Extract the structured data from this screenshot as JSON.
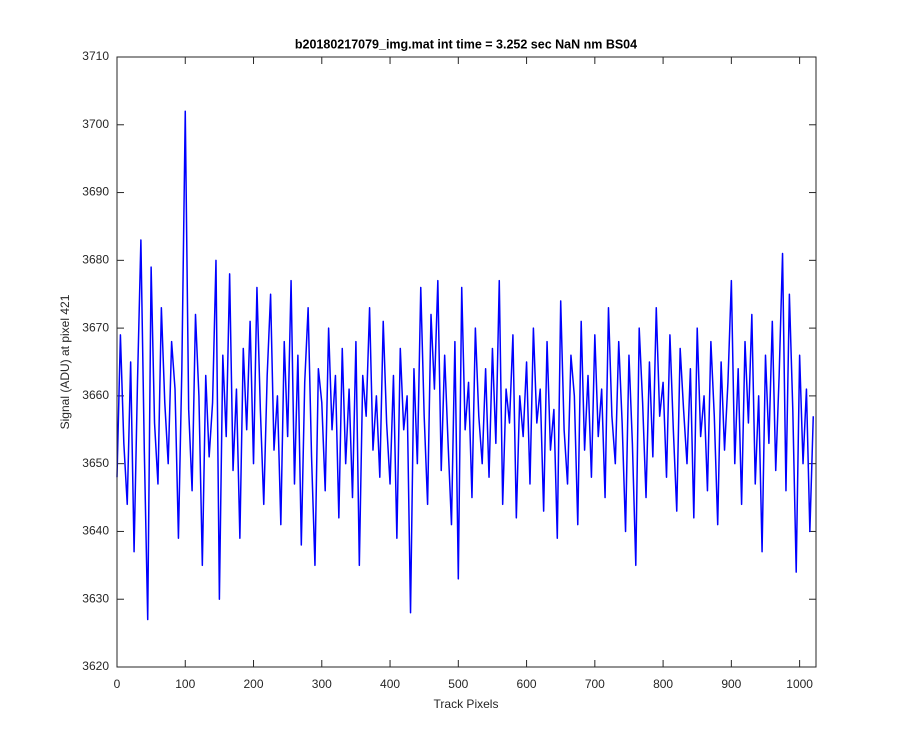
{
  "chart_data": {
    "type": "line",
    "title": "b20180217079_img.mat int time = 3.252 sec  NaN nm BS04",
    "x_label": "Track Pixels",
    "y_label": "Signal (ADU) at pixel 421",
    "xlim": [
      0,
      1024
    ],
    "ylim": [
      3620,
      3710
    ],
    "xticks": [
      0,
      100,
      200,
      300,
      400,
      500,
      600,
      700,
      800,
      900,
      1000
    ],
    "yticks": [
      3620,
      3630,
      3640,
      3650,
      3660,
      3670,
      3680,
      3690,
      3700,
      3710
    ],
    "x": [
      0,
      5,
      10,
      15,
      20,
      25,
      30,
      35,
      40,
      45,
      50,
      55,
      60,
      65,
      70,
      75,
      80,
      85,
      90,
      95,
      100,
      105,
      110,
      115,
      120,
      125,
      130,
      135,
      140,
      145,
      150,
      155,
      160,
      165,
      170,
      175,
      180,
      185,
      190,
      195,
      200,
      205,
      210,
      215,
      220,
      225,
      230,
      235,
      240,
      245,
      250,
      255,
      260,
      265,
      270,
      275,
      280,
      285,
      290,
      295,
      300,
      305,
      310,
      315,
      320,
      325,
      330,
      335,
      340,
      345,
      350,
      355,
      360,
      365,
      370,
      375,
      380,
      385,
      390,
      395,
      400,
      405,
      410,
      415,
      420,
      425,
      430,
      435,
      440,
      445,
      450,
      455,
      460,
      465,
      470,
      475,
      480,
      485,
      490,
      495,
      500,
      505,
      510,
      515,
      520,
      525,
      530,
      535,
      540,
      545,
      550,
      555,
      560,
      565,
      570,
      575,
      580,
      585,
      590,
      595,
      600,
      605,
      610,
      615,
      620,
      625,
      630,
      635,
      640,
      645,
      650,
      655,
      660,
      665,
      670,
      675,
      680,
      685,
      690,
      695,
      700,
      705,
      710,
      715,
      720,
      725,
      730,
      735,
      740,
      745,
      750,
      755,
      760,
      765,
      770,
      775,
      780,
      785,
      790,
      795,
      800,
      805,
      810,
      815,
      820,
      825,
      830,
      835,
      840,
      845,
      850,
      855,
      860,
      865,
      870,
      875,
      880,
      885,
      890,
      895,
      900,
      905,
      910,
      915,
      920,
      925,
      930,
      935,
      940,
      945,
      950,
      955,
      960,
      965,
      970,
      975,
      980,
      985,
      990,
      995,
      1000,
      1005,
      1010,
      1015,
      1020
    ],
    "series": [
      {
        "color": "#0000ff",
        "values": [
          3648,
          3669,
          3653,
          3644,
          3665,
          3637,
          3662,
          3683,
          3652,
          3627,
          3679,
          3656,
          3647,
          3673,
          3659,
          3650,
          3668,
          3661,
          3639,
          3664,
          3702,
          3658,
          3646,
          3672,
          3660,
          3635,
          3663,
          3651,
          3659,
          3680,
          3630,
          3666,
          3654,
          3678,
          3649,
          3661,
          3639,
          3667,
          3655,
          3671,
          3650,
          3676,
          3658,
          3644,
          3663,
          3675,
          3652,
          3660,
          3641,
          3668,
          3654,
          3677,
          3647,
          3666,
          3638,
          3662,
          3673,
          3651,
          3635,
          3664,
          3659,
          3646,
          3670,
          3655,
          3663,
          3642,
          3667,
          3650,
          3661,
          3645,
          3668,
          3635,
          3663,
          3657,
          3673,
          3652,
          3660,
          3648,
          3671,
          3656,
          3647,
          3663,
          3639,
          3667,
          3655,
          3660,
          3628,
          3664,
          3650,
          3676,
          3657,
          3644,
          3672,
          3661,
          3677,
          3649,
          3666,
          3653,
          3641,
          3668,
          3633,
          3676,
          3655,
          3662,
          3645,
          3670,
          3657,
          3650,
          3664,
          3648,
          3667,
          3653,
          3677,
          3644,
          3661,
          3656,
          3669,
          3642,
          3660,
          3654,
          3665,
          3647,
          3670,
          3656,
          3661,
          3643,
          3668,
          3652,
          3658,
          3639,
          3674,
          3655,
          3647,
          3666,
          3660,
          3641,
          3671,
          3652,
          3663,
          3648,
          3669,
          3654,
          3661,
          3645,
          3673,
          3657,
          3650,
          3668,
          3656,
          3640,
          3666,
          3653,
          3635,
          3670,
          3659,
          3645,
          3665,
          3651,
          3673,
          3657,
          3662,
          3648,
          3669,
          3655,
          3643,
          3667,
          3658,
          3650,
          3664,
          3642,
          3670,
          3654,
          3660,
          3646,
          3668,
          3657,
          3641,
          3665,
          3652,
          3662,
          3677,
          3650,
          3664,
          3644,
          3668,
          3656,
          3672,
          3647,
          3660,
          3637,
          3666,
          3653,
          3671,
          3649,
          3663,
          3681,
          3646,
          3675,
          3658,
          3634,
          3666,
          3650,
          3661,
          3640,
          3657
        ]
      }
    ]
  }
}
